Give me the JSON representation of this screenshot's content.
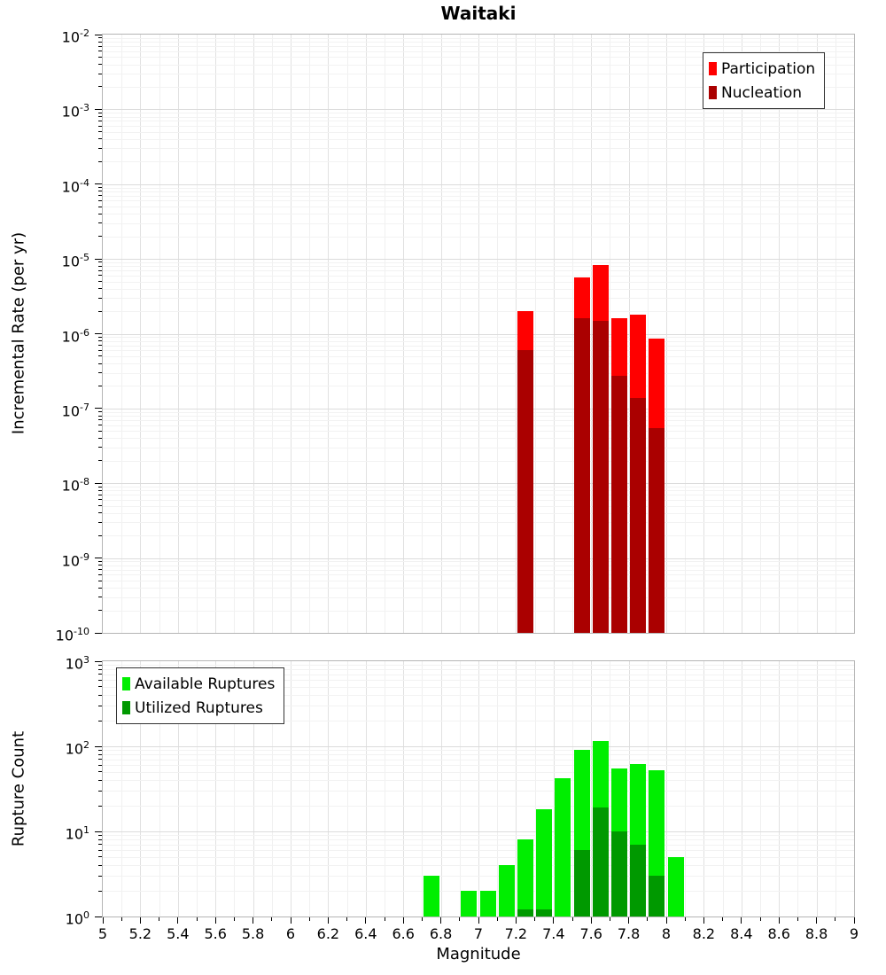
{
  "title": "Waitaki",
  "xlabel": "Magnitude",
  "chart_data": [
    {
      "type": "bar",
      "panel": "incremental-rate",
      "ylabel": "Incremental Rate (per yr)",
      "yscale": "log",
      "ylim_exponents": [
        -10,
        -2
      ],
      "xlim": [
        5,
        9
      ],
      "x_tick_step": 0.2,
      "bin_width": 0.1,
      "grid": true,
      "legend_position": "top-right",
      "series": [
        {
          "name": "Participation",
          "color": "#ff0000",
          "bins": [
            {
              "m": 7.2,
              "v": 2e-06
            },
            {
              "m": 7.5,
              "v": 5.6e-06
            },
            {
              "m": 7.6,
              "v": 8.2e-06
            },
            {
              "m": 7.7,
              "v": 1.6e-06
            },
            {
              "m": 7.8,
              "v": 1.8e-06
            },
            {
              "m": 7.9,
              "v": 8.5e-07
            }
          ]
        },
        {
          "name": "Nucleation",
          "color": "#aa0000",
          "bins": [
            {
              "m": 7.2,
              "v": 6e-07
            },
            {
              "m": 7.5,
              "v": 1.6e-06
            },
            {
              "m": 7.6,
              "v": 1.5e-06
            },
            {
              "m": 7.7,
              "v": 2.7e-07
            },
            {
              "m": 7.8,
              "v": 1.4e-07
            },
            {
              "m": 7.9,
              "v": 5.5e-08
            }
          ]
        }
      ]
    },
    {
      "type": "bar",
      "panel": "rupture-count",
      "ylabel": "Rupture Count",
      "yscale": "log",
      "ylim_exponents": [
        0,
        3
      ],
      "xlim": [
        5,
        9
      ],
      "x_tick_step": 0.2,
      "bin_width": 0.1,
      "grid": true,
      "legend_position": "top-left",
      "series": [
        {
          "name": "Available Ruptures",
          "color": "#00ee00",
          "bins": [
            {
              "m": 6.7,
              "v": 3
            },
            {
              "m": 6.9,
              "v": 2
            },
            {
              "m": 7.0,
              "v": 2
            },
            {
              "m": 7.1,
              "v": 4
            },
            {
              "m": 7.2,
              "v": 8
            },
            {
              "m": 7.3,
              "v": 18
            },
            {
              "m": 7.4,
              "v": 42
            },
            {
              "m": 7.5,
              "v": 90
            },
            {
              "m": 7.6,
              "v": 115
            },
            {
              "m": 7.7,
              "v": 55
            },
            {
              "m": 7.8,
              "v": 62
            },
            {
              "m": 7.9,
              "v": 52
            },
            {
              "m": 8.0,
              "v": 5
            }
          ]
        },
        {
          "name": "Utilized Ruptures",
          "color": "#009900",
          "bins": [
            {
              "m": 7.2,
              "v": 1
            },
            {
              "m": 7.3,
              "v": 1
            },
            {
              "m": 7.5,
              "v": 6
            },
            {
              "m": 7.6,
              "v": 19
            },
            {
              "m": 7.7,
              "v": 10
            },
            {
              "m": 7.8,
              "v": 7
            },
            {
              "m": 7.9,
              "v": 3
            }
          ]
        }
      ]
    }
  ]
}
